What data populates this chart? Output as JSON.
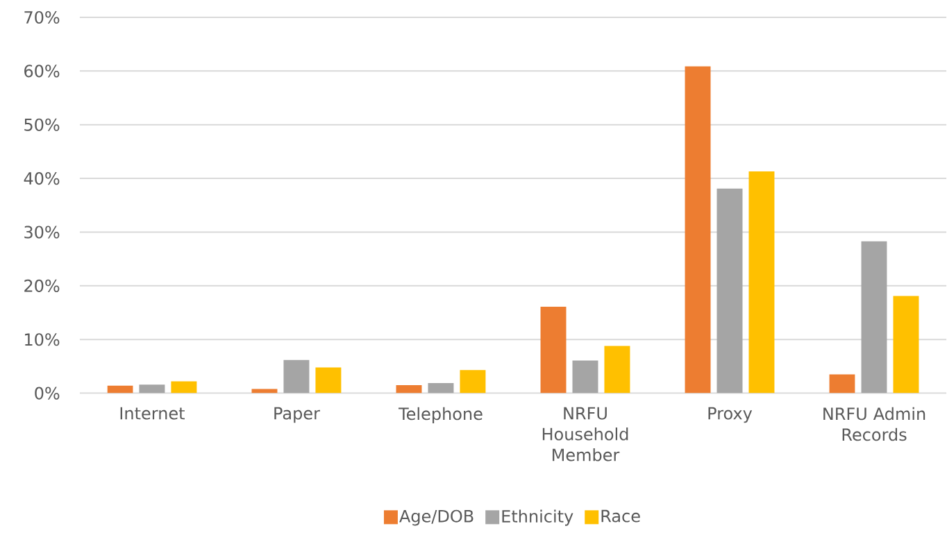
{
  "chart_data": {
    "type": "bar",
    "categories": [
      "Internet",
      "Paper",
      "Telephone",
      "NRFU Household Member",
      "Proxy",
      "NRFU Admin Records"
    ],
    "series": [
      {
        "name": "Age/DOB",
        "color": "#ed7d31",
        "values": [
          1.4,
          0.8,
          1.5,
          16.1,
          60.9,
          3.5
        ]
      },
      {
        "name": "Ethnicity",
        "color": "#a5a5a5",
        "values": [
          1.6,
          6.2,
          1.9,
          6.1,
          38.1,
          28.3
        ]
      },
      {
        "name": "Race",
        "color": "#ffc000",
        "values": [
          2.2,
          4.8,
          4.3,
          8.8,
          41.3,
          18.1
        ]
      }
    ],
    "ylim": [
      0,
      70
    ],
    "yticks": [
      {
        "value": 0,
        "label": "0%"
      },
      {
        "value": 10,
        "label": "10%"
      },
      {
        "value": 20,
        "label": "20%"
      },
      {
        "value": 30,
        "label": "30%"
      },
      {
        "value": 40,
        "label": "40%"
      },
      {
        "value": 50,
        "label": "50%"
      },
      {
        "value": 60,
        "label": "60%"
      },
      {
        "value": 70,
        "label": "70%"
      }
    ],
    "grid": "y",
    "legend": "bottom"
  }
}
